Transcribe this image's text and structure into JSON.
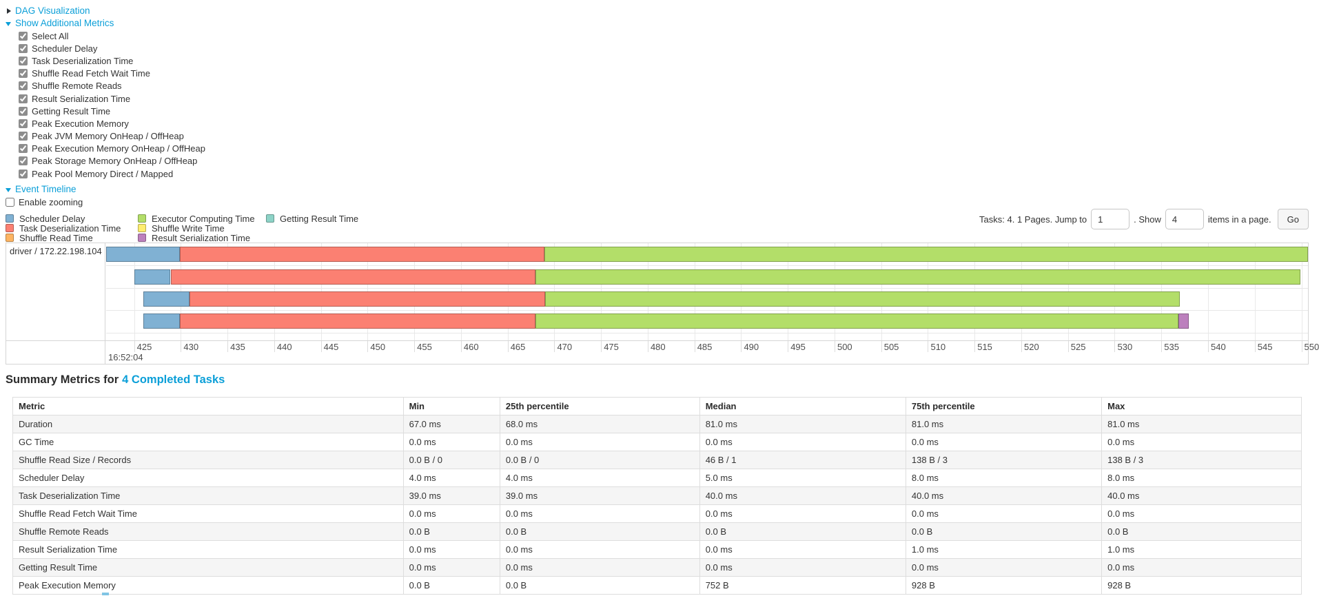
{
  "colors": {
    "link": "#0b9fd8",
    "table_stripe": "#f5f5f5",
    "chart_border": "#d5d5d5"
  },
  "page": {
    "dag_section": {
      "label": "DAG Visualization",
      "state": "collapsed"
    },
    "metrics_section": {
      "label": "Show Additional Metrics",
      "state": "expanded",
      "checkboxes": [
        {
          "label": "Select All",
          "checked": true
        },
        {
          "label": "Scheduler Delay",
          "checked": true
        },
        {
          "label": "Task Deserialization Time",
          "checked": true
        },
        {
          "label": "Shuffle Read Fetch Wait Time",
          "checked": true
        },
        {
          "label": "Shuffle Remote Reads",
          "checked": true
        },
        {
          "label": "Result Serialization Time",
          "checked": true
        },
        {
          "label": "Getting Result Time",
          "checked": true
        },
        {
          "label": "Peak Execution Memory",
          "checked": true
        },
        {
          "label": "Peak JVM Memory OnHeap / OffHeap",
          "checked": true
        },
        {
          "label": "Peak Execution Memory OnHeap / OffHeap",
          "checked": true
        },
        {
          "label": "Peak Storage Memory OnHeap / OffHeap",
          "checked": true
        },
        {
          "label": "Peak Pool Memory Direct / Mapped",
          "checked": true
        }
      ]
    },
    "timeline_section": {
      "label": "Event Timeline",
      "state": "expanded",
      "enable_zooming_label": "Enable zooming",
      "enable_zooming_checked": false
    }
  },
  "pagination": {
    "summary_text": "Tasks: 4. 1 Pages. Jump to",
    "jump_value": "1",
    "show_label": ". Show",
    "show_value": "4",
    "items_label": "items in a page.",
    "go_label": "Go"
  },
  "chart_data": {
    "type": "timeline",
    "title": "Event Timeline",
    "group_label": "driver / 172.22.198.104",
    "x_axis": {
      "min": 422.0,
      "max": 550.7,
      "tick_start": 425,
      "tick_end": 550,
      "tick_step": 5,
      "major_tick_label": "16:52:04",
      "unit": "milliseconds within second 16:52:04"
    },
    "legend": [
      {
        "label": "Scheduler Delay",
        "color": "#80B1D3",
        "column": 0
      },
      {
        "label": "Task Deserialization Time",
        "color": "#FB8072",
        "column": 0
      },
      {
        "label": "Shuffle Read Time",
        "color": "#FDB462",
        "column": 0
      },
      {
        "label": "Executor Computing Time",
        "color": "#B3DE69",
        "column": 1
      },
      {
        "label": "Shuffle Write Time",
        "color": "#FFED6F",
        "column": 1
      },
      {
        "label": "Result Serialization Time",
        "color": "#BC80BD",
        "column": 1
      },
      {
        "label": "Getting Result Time",
        "color": "#8DD3C7",
        "column": 2
      }
    ],
    "tasks": [
      {
        "segments": [
          {
            "name": "Scheduler Delay",
            "start": 422.0,
            "end": 429.9
          },
          {
            "name": "Task Deserialization Time",
            "start": 429.9,
            "end": 468.9
          },
          {
            "name": "Executor Computing Time",
            "start": 468.9,
            "end": 550.7
          }
        ]
      },
      {
        "segments": [
          {
            "name": "Scheduler Delay",
            "start": 425.0,
            "end": 428.9
          },
          {
            "name": "Task Deserialization Time",
            "start": 428.9,
            "end": 468.0
          },
          {
            "name": "Executor Computing Time",
            "start": 468.0,
            "end": 549.9
          }
        ]
      },
      {
        "segments": [
          {
            "name": "Scheduler Delay",
            "start": 426.0,
            "end": 430.9
          },
          {
            "name": "Task Deserialization Time",
            "start": 430.9,
            "end": 469.0
          },
          {
            "name": "Executor Computing Time",
            "start": 469.0,
            "end": 537.0
          }
        ]
      },
      {
        "segments": [
          {
            "name": "Scheduler Delay",
            "start": 426.0,
            "end": 429.9
          },
          {
            "name": "Task Deserialization Time",
            "start": 429.9,
            "end": 468.0
          },
          {
            "name": "Executor Computing Time",
            "start": 468.0,
            "end": 536.8
          },
          {
            "name": "Result Serialization Time",
            "start": 536.8,
            "end": 537.9
          }
        ]
      }
    ]
  },
  "summary_table": {
    "title": "Summary Metrics for",
    "title_link": "4 Completed Tasks",
    "columns": [
      "Metric",
      "Min",
      "25th percentile",
      "Median",
      "75th percentile",
      "Max"
    ],
    "column_widths": [
      "30.3%",
      "7.5%",
      "15.5%",
      "16%",
      "15.2%",
      "15.5%"
    ],
    "rows": [
      {
        "metric": "Duration",
        "values": [
          "67.0 ms",
          "68.0 ms",
          "81.0 ms",
          "81.0 ms",
          "81.0 ms"
        ]
      },
      {
        "metric": "GC Time",
        "values": [
          "0.0 ms",
          "0.0 ms",
          "0.0 ms",
          "0.0 ms",
          "0.0 ms"
        ]
      },
      {
        "metric": "Shuffle Read Size / Records",
        "values": [
          "0.0 B / 0",
          "0.0 B / 0",
          "46 B / 1",
          "138 B / 3",
          "138 B / 3"
        ]
      },
      {
        "metric": "Scheduler Delay",
        "values": [
          "4.0 ms",
          "4.0 ms",
          "5.0 ms",
          "8.0 ms",
          "8.0 ms"
        ]
      },
      {
        "metric": "Task Deserialization Time",
        "values": [
          "39.0 ms",
          "39.0 ms",
          "40.0 ms",
          "40.0 ms",
          "40.0 ms"
        ]
      },
      {
        "metric": "Shuffle Read Fetch Wait Time",
        "values": [
          "0.0 ms",
          "0.0 ms",
          "0.0 ms",
          "0.0 ms",
          "0.0 ms"
        ]
      },
      {
        "metric": "Shuffle Remote Reads",
        "values": [
          "0.0 B",
          "0.0 B",
          "0.0 B",
          "0.0 B",
          "0.0 B"
        ]
      },
      {
        "metric": "Result Serialization Time",
        "values": [
          "0.0 ms",
          "0.0 ms",
          "0.0 ms",
          "1.0 ms",
          "1.0 ms"
        ]
      },
      {
        "metric": "Getting Result Time",
        "values": [
          "0.0 ms",
          "0.0 ms",
          "0.0 ms",
          "0.0 ms",
          "0.0 ms"
        ]
      },
      {
        "metric": "Peak Execution Memory",
        "values": [
          "0.0 B",
          "0.0 B",
          "752 B",
          "928 B",
          "928 B"
        ]
      }
    ]
  }
}
